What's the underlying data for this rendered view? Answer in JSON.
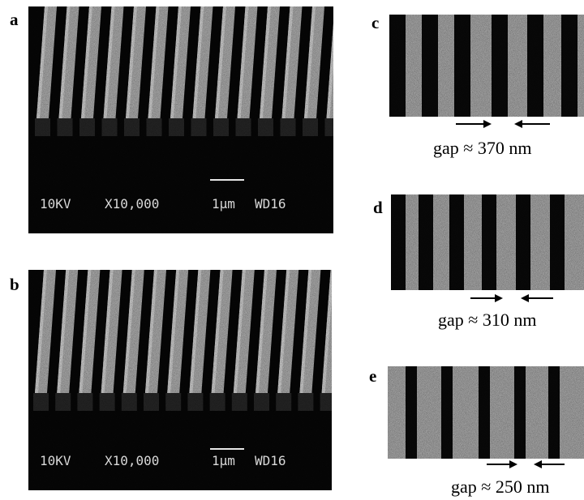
{
  "panels": [
    {
      "label": "a",
      "sem_info": {
        "voltage": "10KV",
        "magnification": "X10,000",
        "scale": "1µm",
        "working_distance": "WD16"
      }
    },
    {
      "label": "b",
      "sem_info": {
        "voltage": "10KV",
        "magnification": "X10,000",
        "scale": "1µm",
        "working_distance": "WD16"
      }
    },
    {
      "label": "c",
      "caption": "gap ≈ 370 nm"
    },
    {
      "label": "d",
      "caption": "gap ≈ 310 nm"
    },
    {
      "label": "e",
      "caption": "gap ≈ 250 nm"
    }
  ],
  "colors": {
    "background": "#ffffff",
    "sem_dark": "#070707",
    "stripe_light": "#c4c4c4",
    "stripe_dark": "#0a0a0a"
  }
}
